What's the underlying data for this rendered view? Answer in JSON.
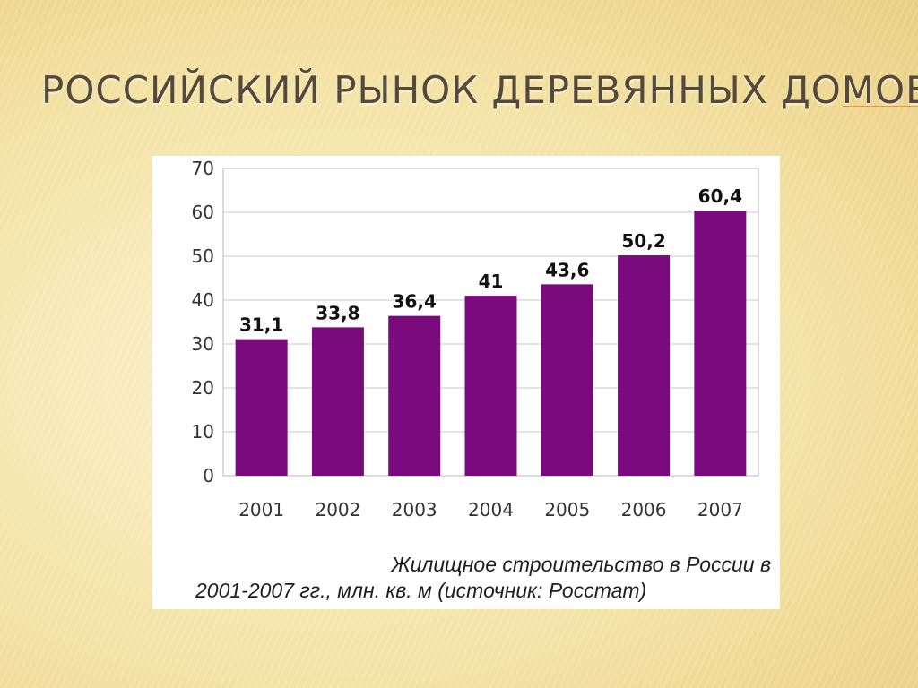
{
  "slide": {
    "title": "РОССИЙСКИЙ РЫНОК ДЕРЕВЯННЫХ ДОМОВ"
  },
  "chart_data": {
    "type": "bar",
    "categories": [
      "2001",
      "2002",
      "2003",
      "2004",
      "2005",
      "2006",
      "2007"
    ],
    "values": [
      31.1,
      33.8,
      36.4,
      41,
      43.6,
      50.2,
      60.4
    ],
    "data_labels": [
      "31,1",
      "33,8",
      "36,4",
      "41",
      "43,6",
      "50,2",
      "60,4"
    ],
    "yticks": [
      "0",
      "10",
      "20",
      "30",
      "40",
      "50",
      "60",
      "70"
    ],
    "ylim": [
      0,
      70
    ],
    "grid": true,
    "legend": "none",
    "bar_color": "#7b0a7e",
    "caption_line1": "Жилищное строительство в России в",
    "caption_line2": "2001-2007 гг., млн. кв. м  (источник: Росстат)"
  }
}
